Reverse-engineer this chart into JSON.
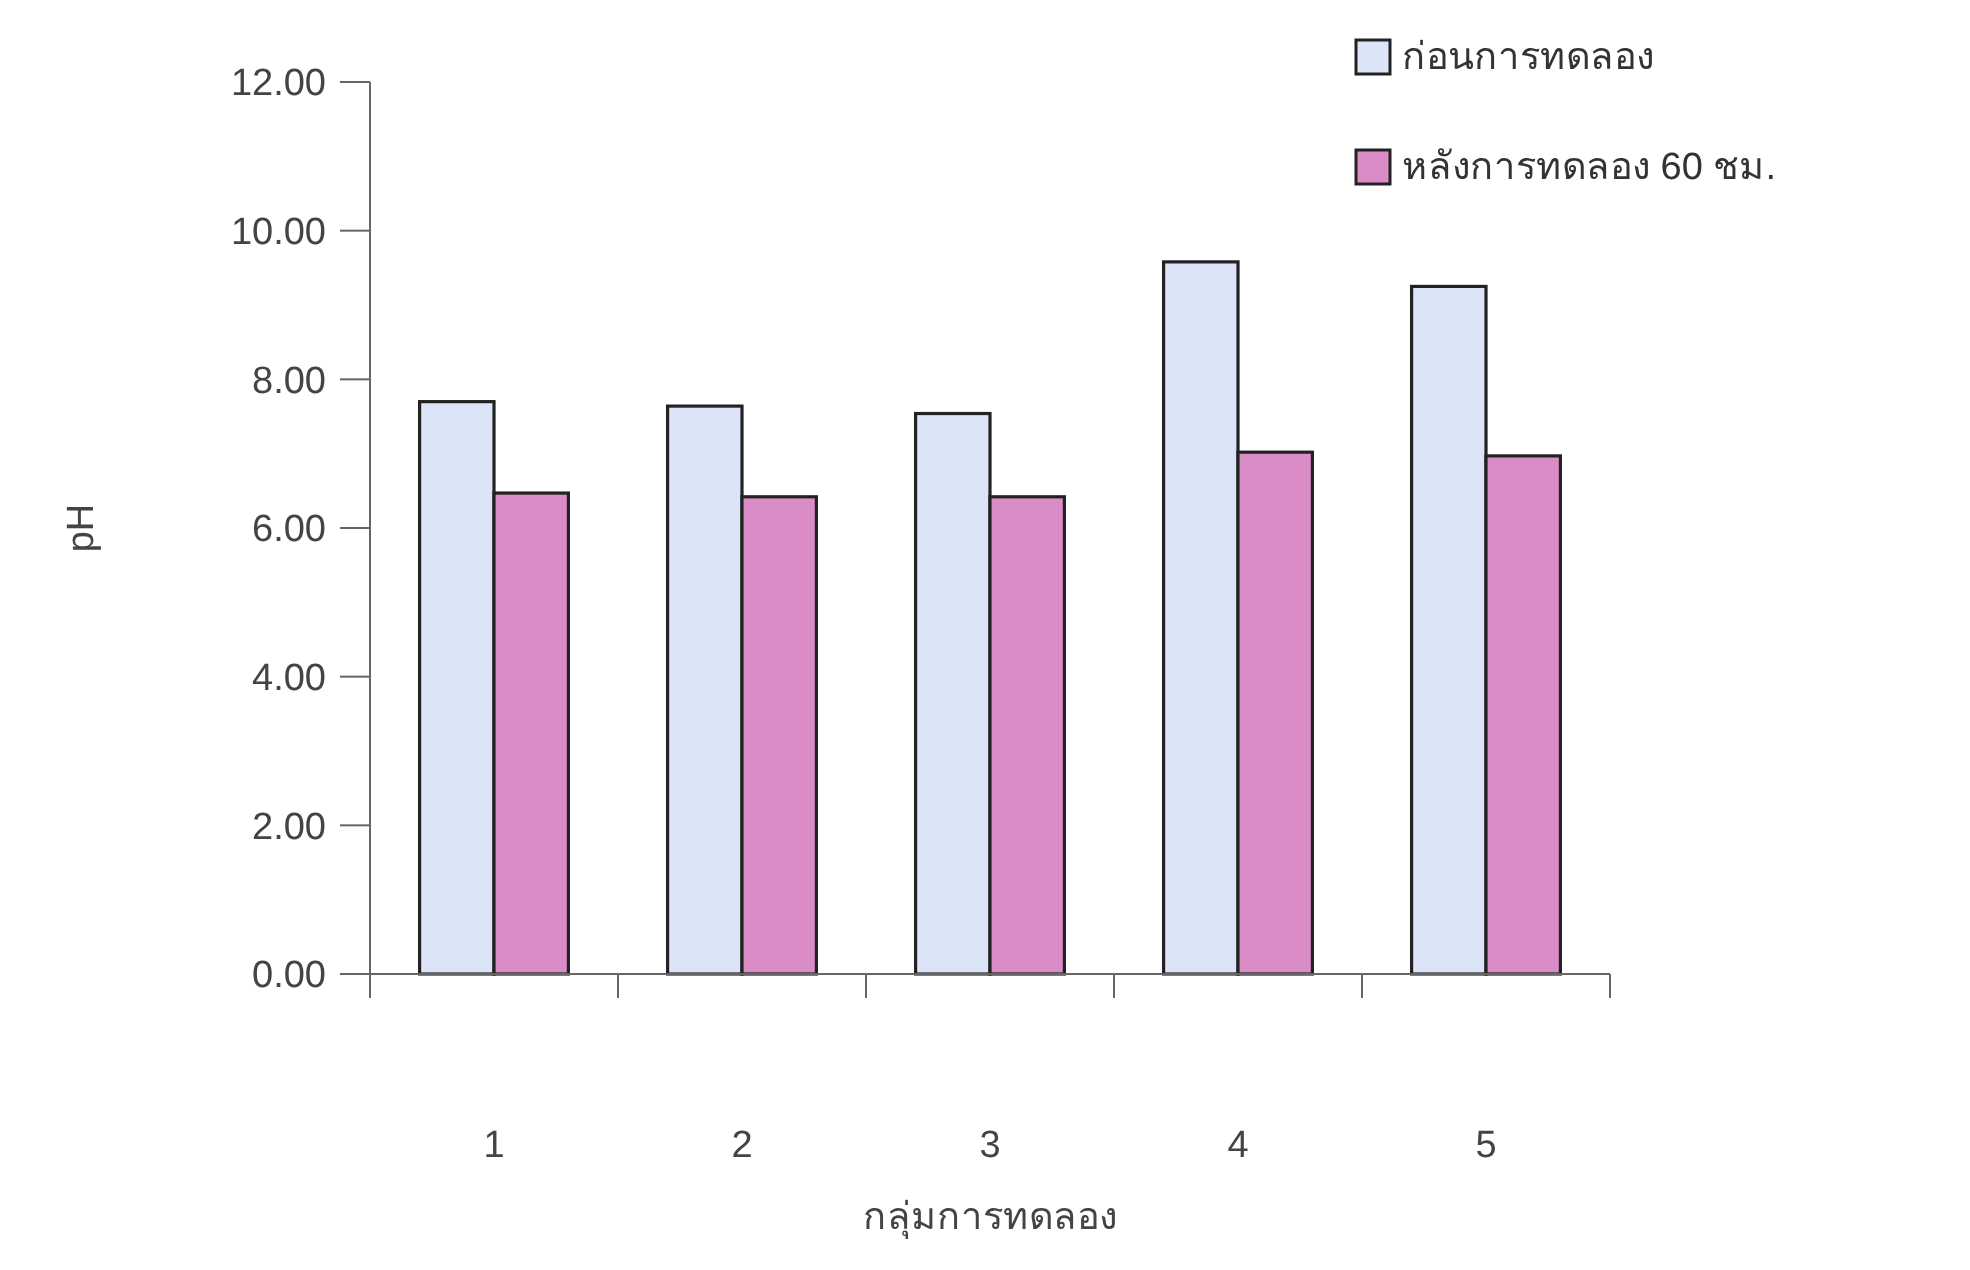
{
  "chart_data": {
    "type": "bar",
    "xlabel": "กลุ่มการทดลอง",
    "ylabel": "pH",
    "categories": [
      "1",
      "2",
      "3",
      "4",
      "5"
    ],
    "series": [
      {
        "name": "ก่อนการทดลอง",
        "color": "#dce5f7",
        "values": [
          7.7,
          7.64,
          7.54,
          9.58,
          9.25
        ]
      },
      {
        "name": "หลังการทดลอง 60 ชม.",
        "color": "#d98cc6",
        "values": [
          6.47,
          6.42,
          6.42,
          7.02,
          6.97
        ]
      }
    ],
    "ylim": [
      0,
      12
    ],
    "yticks": [
      {
        "value": 0,
        "label": "0.00"
      },
      {
        "value": 2,
        "label": "2.00"
      },
      {
        "value": 4,
        "label": "4.00"
      },
      {
        "value": 6,
        "label": "6.00"
      },
      {
        "value": 8,
        "label": "8.00"
      },
      {
        "value": 10,
        "label": "10.00"
      },
      {
        "value": 12,
        "label": "12.00"
      }
    ],
    "grid": false,
    "legend": "top right"
  }
}
